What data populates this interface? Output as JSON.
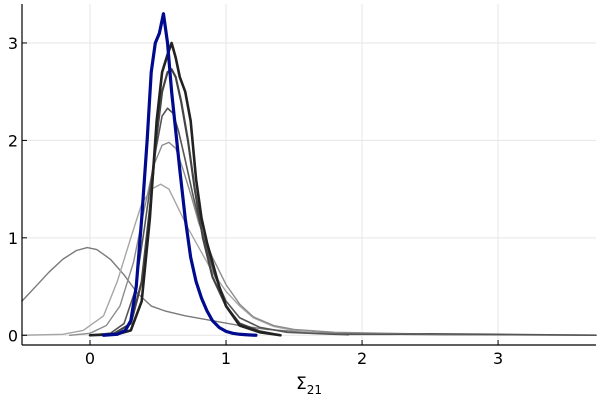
{
  "chart_data": {
    "type": "line",
    "title": "",
    "xlabel": "Σ",
    "xlabel_subscript": "21",
    "ylabel": "",
    "xlim": [
      -0.5,
      3.72
    ],
    "ylim": [
      -0.1,
      3.4
    ],
    "xticks": [
      0,
      1,
      2,
      3
    ],
    "yticks": [
      0,
      1,
      2,
      3
    ],
    "grid": true,
    "legend": "none",
    "series": [
      {
        "color": "#7a7a7a",
        "width": 1.4,
        "x": [
          -0.5,
          -0.4,
          -0.3,
          -0.2,
          -0.1,
          -0.02,
          0.05,
          0.15,
          0.25,
          0.35,
          0.45,
          0.55,
          0.7,
          0.9,
          1.1,
          1.3,
          1.5,
          1.8,
          2.2,
          2.6,
          3.0,
          3.72
        ],
        "y": [
          0.35,
          0.5,
          0.65,
          0.78,
          0.87,
          0.9,
          0.88,
          0.78,
          0.62,
          0.43,
          0.3,
          0.25,
          0.2,
          0.15,
          0.1,
          0.06,
          0.04,
          0.02,
          0.01,
          0.005,
          0.003,
          0.002
        ]
      },
      {
        "color": "#a6a6a6",
        "width": 1.4,
        "x": [
          -0.5,
          -0.2,
          -0.05,
          0.1,
          0.2,
          0.3,
          0.38,
          0.45,
          0.52,
          0.58,
          0.65,
          0.72,
          0.8,
          0.9,
          1.0,
          1.1,
          1.2,
          1.35,
          1.5,
          1.7,
          1.9
        ],
        "y": [
          0.0,
          0.01,
          0.05,
          0.2,
          0.55,
          1.0,
          1.35,
          1.5,
          1.55,
          1.5,
          1.3,
          1.1,
          0.9,
          0.65,
          0.45,
          0.3,
          0.18,
          0.09,
          0.05,
          0.02,
          0.0
        ]
      },
      {
        "color": "#8c8c8c",
        "width": 1.4,
        "x": [
          -0.15,
          0.0,
          0.12,
          0.22,
          0.32,
          0.4,
          0.47,
          0.53,
          0.58,
          0.63,
          0.68,
          0.74,
          0.8,
          0.9,
          1.0,
          1.1,
          1.2,
          1.35,
          1.5,
          1.8,
          2.2,
          2.6,
          3.0,
          3.72
        ],
        "y": [
          0.0,
          0.02,
          0.1,
          0.3,
          0.75,
          1.3,
          1.75,
          1.95,
          1.98,
          1.92,
          1.72,
          1.45,
          1.15,
          0.8,
          0.52,
          0.32,
          0.19,
          0.1,
          0.06,
          0.03,
          0.02,
          0.01,
          0.005,
          0.0
        ]
      },
      {
        "color": "#555555",
        "width": 1.6,
        "x": [
          0.0,
          0.15,
          0.25,
          0.33,
          0.4,
          0.47,
          0.53,
          0.57,
          0.61,
          0.65,
          0.7,
          0.76,
          0.83,
          0.92,
          1.0,
          1.1,
          1.25,
          1.45,
          1.8,
          2.2,
          2.5,
          3.0,
          3.72
        ],
        "y": [
          0.0,
          0.02,
          0.12,
          0.45,
          1.1,
          1.8,
          2.25,
          2.33,
          2.28,
          2.1,
          1.8,
          1.42,
          1.02,
          0.6,
          0.35,
          0.18,
          0.08,
          0.03,
          0.01,
          0.01,
          0.015,
          0.01,
          0.0
        ]
      },
      {
        "color": "#444444",
        "width": 2.2,
        "x": [
          0.0,
          0.18,
          0.3,
          0.38,
          0.44,
          0.49,
          0.53,
          0.57,
          0.6,
          0.63,
          0.67,
          0.72,
          0.77,
          0.83,
          0.9,
          1.0,
          1.1,
          1.25,
          1.4
        ],
        "y": [
          0.0,
          0.02,
          0.12,
          0.55,
          1.3,
          2.05,
          2.5,
          2.7,
          2.73,
          2.65,
          2.4,
          2.0,
          1.5,
          1.0,
          0.6,
          0.3,
          0.12,
          0.04,
          0.0
        ]
      },
      {
        "color": "#222222",
        "width": 2.6,
        "x": [
          0.0,
          0.2,
          0.3,
          0.38,
          0.44,
          0.49,
          0.53,
          0.57,
          0.6,
          0.63,
          0.66,
          0.7,
          0.74,
          0.78,
          0.82,
          0.86,
          0.9,
          0.95,
          1.0,
          1.1,
          1.25,
          1.4
        ],
        "y": [
          0.0,
          0.01,
          0.05,
          0.35,
          1.2,
          2.2,
          2.7,
          2.88,
          3.0,
          2.85,
          2.65,
          2.5,
          2.2,
          1.6,
          1.2,
          0.95,
          0.75,
          0.5,
          0.3,
          0.1,
          0.03,
          0.0
        ]
      },
      {
        "color": "#000a8f",
        "width": 3.2,
        "x": [
          0.1,
          0.2,
          0.26,
          0.3,
          0.34,
          0.38,
          0.42,
          0.45,
          0.48,
          0.51,
          0.54,
          0.57,
          0.6,
          0.63,
          0.66,
          0.7,
          0.74,
          0.78,
          0.82,
          0.86,
          0.9,
          0.95,
          1.0,
          1.05,
          1.1,
          1.15,
          1.22
        ],
        "y": [
          0.0,
          0.01,
          0.05,
          0.15,
          0.5,
          1.2,
          2.0,
          2.7,
          3.0,
          3.1,
          3.3,
          3.0,
          2.5,
          2.1,
          1.7,
          1.2,
          0.8,
          0.55,
          0.38,
          0.25,
          0.15,
          0.08,
          0.04,
          0.02,
          0.01,
          0.005,
          0.0
        ]
      }
    ]
  }
}
